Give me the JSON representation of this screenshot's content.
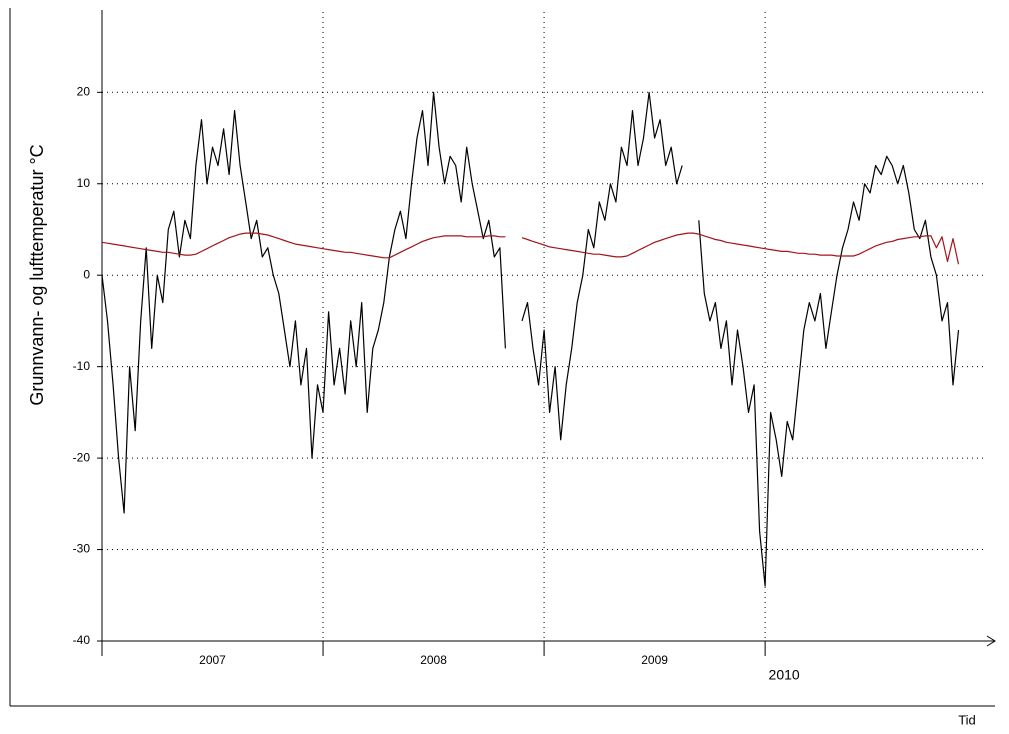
{
  "chart_data": {
    "type": "line",
    "y_label": "Grunnvann- og lufttemperatur °C",
    "x_label": "Tid",
    "xlim": [
      2007,
      2011.04
    ],
    "xticks": [
      2007,
      2008,
      2009,
      2010
    ],
    "ylim": [
      -40,
      29
    ],
    "yticks": [
      -40,
      -30,
      -20,
      -10,
      0,
      10,
      20
    ],
    "grid": true,
    "x": [
      2007,
      2007.025,
      2007.05,
      2007.075,
      2007.1,
      2007.125,
      2007.15,
      2007.175,
      2007.2,
      2007.225,
      2007.25,
      2007.275,
      2007.3,
      2007.325,
      2007.35,
      2007.375,
      2007.4,
      2007.425,
      2007.45,
      2007.475,
      2007.5,
      2007.525,
      2007.55,
      2007.575,
      2007.6,
      2007.625,
      2007.65,
      2007.675,
      2007.7,
      2007.725,
      2007.75,
      2007.775,
      2007.8,
      2007.825,
      2007.85,
      2007.875,
      2007.9,
      2007.925,
      2007.95,
      2007.975,
      2008,
      2008.025,
      2008.05,
      2008.075,
      2008.1,
      2008.125,
      2008.15,
      2008.175,
      2008.2,
      2008.225,
      2008.25,
      2008.275,
      2008.3,
      2008.325,
      2008.35,
      2008.375,
      2008.4,
      2008.425,
      2008.45,
      2008.475,
      2008.5,
      2008.525,
      2008.55,
      2008.575,
      2008.6,
      2008.625,
      2008.65,
      2008.675,
      2008.7,
      2008.725,
      2008.75,
      2008.775,
      2008.8,
      2008.825,
      2008.85,
      2008.875,
      2008.9,
      2008.925,
      2008.95,
      2008.975,
      2009,
      2009.025,
      2009.05,
      2009.075,
      2009.1,
      2009.125,
      2009.15,
      2009.175,
      2009.2,
      2009.225,
      2009.25,
      2009.275,
      2009.3,
      2009.325,
      2009.35,
      2009.375,
      2009.4,
      2009.425,
      2009.45,
      2009.475,
      2009.5,
      2009.525,
      2009.55,
      2009.575,
      2009.6,
      2009.625,
      2009.65,
      2009.675,
      2009.7,
      2009.725,
      2009.75,
      2009.775,
      2009.8,
      2009.825,
      2009.85,
      2009.875,
      2009.9,
      2009.925,
      2009.95,
      2009.975,
      2010,
      2010.025,
      2010.05,
      2010.075,
      2010.1,
      2010.125,
      2010.15,
      2010.175,
      2010.2,
      2010.225,
      2010.25,
      2010.275,
      2010.3,
      2010.325,
      2010.35,
      2010.375,
      2010.4,
      2010.425,
      2010.45,
      2010.475,
      2010.5,
      2010.525,
      2010.55,
      2010.575,
      2010.6,
      2010.625,
      2010.65,
      2010.675,
      2010.7,
      2010.725,
      2010.75,
      2010.775,
      2010.8,
      2010.825,
      2010.85,
      2010.875
    ],
    "series": [
      {
        "color": "#000000",
        "values": [
          0,
          -5,
          -12,
          -20,
          -26,
          -10,
          -17,
          -5,
          3,
          -8,
          0,
          -3,
          5,
          7,
          2,
          6,
          4,
          12,
          17,
          10,
          14,
          12,
          16,
          11,
          18,
          12,
          8,
          4,
          6,
          2,
          3,
          0,
          -2,
          -6,
          -10,
          -5,
          -12,
          -8,
          -20,
          -12,
          -15,
          -4,
          -12,
          -8,
          -13,
          -5,
          -10,
          -3,
          -15,
          -8,
          -6,
          -3,
          2,
          5,
          7,
          4,
          10,
          15,
          18,
          12,
          20,
          14,
          10,
          13,
          12,
          8,
          14,
          10,
          7,
          4,
          6,
          2,
          3,
          -8,
          null,
          null,
          -5,
          -3,
          -8,
          -12,
          -6,
          -15,
          -10,
          -18,
          -12,
          -8,
          -3,
          0,
          5,
          3,
          8,
          6,
          10,
          8,
          14,
          12,
          18,
          12,
          15,
          20,
          15,
          17,
          12,
          14,
          10,
          12,
          null,
          null,
          6,
          -2,
          -5,
          -3,
          -8,
          -5,
          -12,
          -6,
          -10,
          -15,
          -12,
          -28,
          -34,
          -15,
          -18,
          -22,
          -16,
          -18,
          -12,
          -6,
          -3,
          -5,
          -2,
          -8,
          -4,
          0,
          3,
          5,
          8,
          6,
          10,
          9,
          12,
          11,
          13,
          12,
          10,
          12,
          9,
          5,
          4,
          6,
          2,
          0,
          -5,
          -3,
          -12,
          -6
        ]
      },
      {
        "color": "#a3141c",
        "values": [
          3.6,
          3.5,
          3.4,
          3.3,
          3.2,
          3.1,
          3.0,
          2.9,
          2.8,
          2.7,
          2.6,
          2.5,
          2.5,
          2.4,
          2.3,
          2.2,
          2.2,
          2.3,
          2.6,
          2.9,
          3.2,
          3.5,
          3.8,
          4.1,
          4.3,
          4.5,
          4.6,
          4.6,
          4.6,
          4.5,
          4.4,
          4.2,
          4.0,
          3.8,
          3.6,
          3.4,
          3.3,
          3.2,
          3.1,
          3.0,
          2.9,
          2.8,
          2.7,
          2.6,
          2.5,
          2.5,
          2.4,
          2.3,
          2.2,
          2.1,
          2.0,
          1.9,
          1.9,
          2.2,
          2.5,
          2.8,
          3.1,
          3.4,
          3.7,
          3.9,
          4.1,
          4.2,
          4.3,
          4.3,
          4.3,
          4.3,
          4.2,
          4.2,
          4.2,
          4.2,
          4.3,
          4.3,
          4.2,
          4.2,
          null,
          null,
          4.1,
          3.9,
          3.7,
          3.5,
          3.3,
          3.1,
          3.0,
          2.9,
          2.8,
          2.7,
          2.6,
          2.5,
          2.4,
          2.3,
          2.3,
          2.2,
          2.1,
          2.0,
          2.0,
          2.1,
          2.4,
          2.7,
          3.0,
          3.3,
          3.6,
          3.8,
          4.0,
          4.2,
          4.4,
          4.5,
          4.6,
          4.6,
          4.5,
          4.3,
          4.1,
          3.9,
          3.8,
          3.6,
          3.5,
          3.4,
          3.3,
          3.2,
          3.1,
          3.0,
          2.9,
          2.8,
          2.7,
          2.6,
          2.6,
          2.5,
          2.4,
          2.4,
          2.3,
          2.3,
          2.2,
          2.2,
          2.2,
          2.1,
          2.1,
          2.1,
          2.1,
          2.3,
          2.6,
          2.9,
          3.2,
          3.4,
          3.6,
          3.7,
          3.9,
          4.0,
          4.1,
          4.2,
          4.2,
          4.3,
          4.3,
          3.0,
          4.2,
          1.5,
          4.0,
          1.2
        ]
      }
    ]
  }
}
